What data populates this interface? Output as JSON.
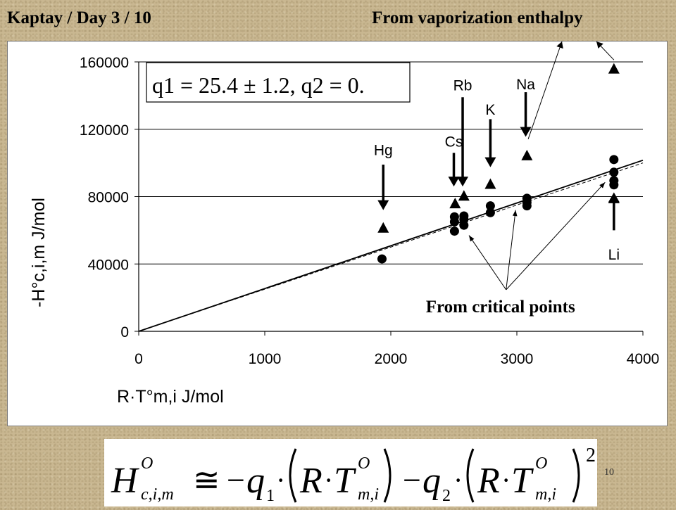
{
  "slide": {
    "title_left": "Kaptay / Day 3 / 10",
    "title_right": "From vaporization enthalpy",
    "page_number": "10"
  },
  "chart_data": {
    "type": "scatter",
    "xlabel": "R·T°m,i  J/mol",
    "ylabel": "-H°c,i,m  J/mol",
    "xlim": [
      0,
      4000
    ],
    "ylim": [
      0,
      160000
    ],
    "x_ticks": [
      0,
      1000,
      2000,
      3000,
      4000
    ],
    "y_ticks": [
      0,
      40000,
      80000,
      120000,
      160000
    ],
    "grid": "horizontal",
    "annotation_box": "q1 = 25.4 ± 1.2, q2 = 0.",
    "series": [
      {
        "marker": "triangle",
        "points": [
          {
            "x": 1940,
            "y": 61500
          },
          {
            "x": 2510,
            "y": 76000
          },
          {
            "x": 2580,
            "y": 80500
          },
          {
            "x": 2790,
            "y": 87500
          },
          {
            "x": 3080,
            "y": 104500
          },
          {
            "x": 3770,
            "y": 79000
          },
          {
            "x": 3770,
            "y": 156000
          }
        ]
      },
      {
        "marker": "circle",
        "points": [
          {
            "x": 1930,
            "y": 43000
          },
          {
            "x": 2505,
            "y": 59500
          },
          {
            "x": 2505,
            "y": 65000
          },
          {
            "x": 2505,
            "y": 68000
          },
          {
            "x": 2580,
            "y": 63000
          },
          {
            "x": 2580,
            "y": 66500
          },
          {
            "x": 2580,
            "y": 68500
          },
          {
            "x": 2790,
            "y": 70500
          },
          {
            "x": 2790,
            "y": 74500
          },
          {
            "x": 3080,
            "y": 74500
          },
          {
            "x": 3080,
            "y": 76500
          },
          {
            "x": 3080,
            "y": 79000
          },
          {
            "x": 3770,
            "y": 87000
          },
          {
            "x": 3770,
            "y": 89500
          },
          {
            "x": 3770,
            "y": 94500
          },
          {
            "x": 3770,
            "y": 102000
          }
        ]
      }
    ],
    "fit_lines": [
      {
        "x": [
          0,
          4000
        ],
        "y": [
          0,
          101600
        ]
      },
      {
        "x": [
          0,
          4000
        ],
        "y": [
          0,
          100000
        ]
      }
    ],
    "element_labels": [
      {
        "text": "Hg",
        "x": 1940,
        "tip": 72000,
        "tail": 99000,
        "label_y": 108000
      },
      {
        "text": "Cs",
        "x": 2500,
        "tip": 86000,
        "tail": 106000,
        "label_y": 113000
      },
      {
        "text": "Rb",
        "x": 2570,
        "tip": 86000,
        "tail": 139000,
        "label_y": 146500
      },
      {
        "text": "K",
        "x": 2790,
        "tip": 97500,
        "tail": 126000,
        "label_y": 132000
      },
      {
        "text": "Na",
        "x": 3070,
        "tip": 115500,
        "tail": 142000,
        "label_y": 147000
      },
      {
        "text": "Li",
        "x": 3770,
        "tip": 82500,
        "tail": 60000,
        "label_y": 46000
      }
    ],
    "callouts": [
      {
        "text": "From critical points",
        "label_x": 2870,
        "label_y": 15500,
        "targets": [
          {
            "x": 2620,
            "y": 57000
          },
          {
            "x": 2990,
            "y": 72000
          },
          {
            "x": 3700,
            "y": 88500
          }
        ]
      },
      {
        "text": "From vaporization enthalpy",
        "targets": [
          {
            "x": 3090,
            "y": 110000
          },
          {
            "x": 3770,
            "y": 157000
          }
        ]
      }
    ]
  },
  "equation": {
    "lhs": "H",
    "lhs_sup": "O",
    "lhs_sub": "c,i,m",
    "approx": "≅",
    "minus1": "−",
    "q1": "q",
    "q1_sub": "1",
    "dot": "·",
    "R": "R",
    "T": "T",
    "T_sup": "O",
    "T_sub": "m,i",
    "minus2": "−",
    "q2": "q",
    "q2_sub": "2",
    "square": "2"
  }
}
